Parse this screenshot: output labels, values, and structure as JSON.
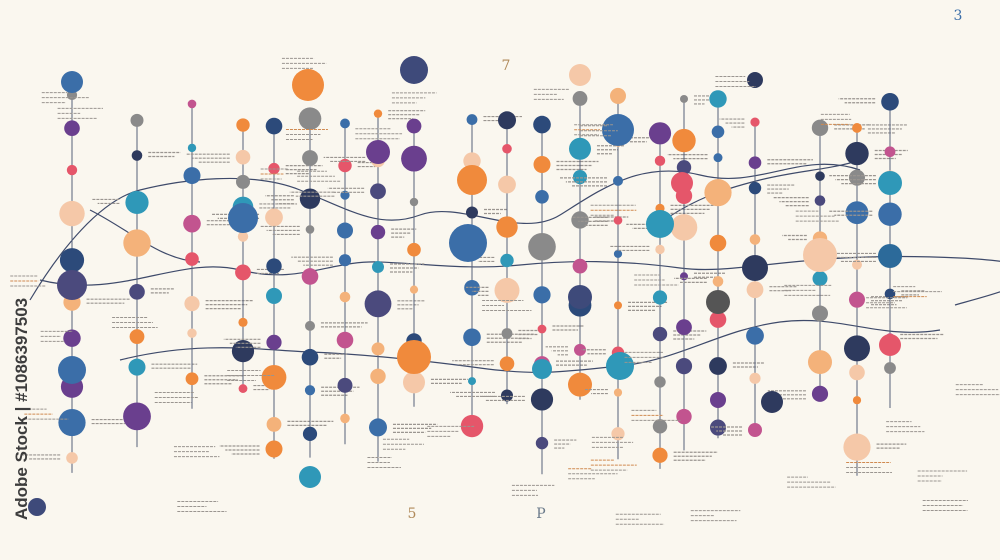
{
  "labels": {
    "top_right": "3",
    "top_center": "7",
    "bottom_left": "5",
    "bottom_right": "P"
  },
  "watermark": "Adobe Stock | #1086397503"
}
